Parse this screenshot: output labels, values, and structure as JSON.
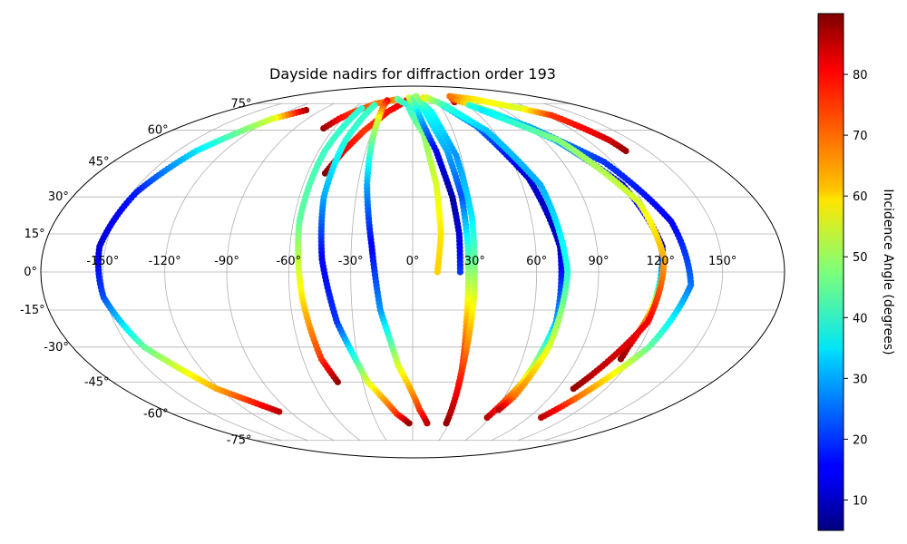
{
  "chart_data": {
    "type": "scatter",
    "projection": "mollweide",
    "title": "Dayside nadirs for diffraction order 193",
    "longitude_ticks": [
      "-150°",
      "-120°",
      "-90°",
      "-60°",
      "-30°",
      "0°",
      "30°",
      "60°",
      "90°",
      "120°",
      "150°"
    ],
    "latitude_ticks": [
      "-75°",
      "-60°",
      "-45°",
      "-30°",
      "-15°",
      "0°",
      "15°",
      "30°",
      "45°",
      "60°",
      "75°"
    ],
    "grid": true,
    "colorbar": {
      "label": "Incidence Angle (degrees)",
      "colormap": "jet",
      "range": [
        5,
        90
      ],
      "ticks": [
        "10",
        "20",
        "30",
        "40",
        "50",
        "60",
        "70",
        "80"
      ]
    },
    "tracks": [
      {
        "points": [
          [
            -105,
            71,
            88
          ],
          [
            -120,
            66,
            55
          ],
          [
            -138,
            50,
            35
          ],
          [
            -148,
            32,
            18
          ],
          [
            -153,
            10,
            12
          ],
          [
            -151,
            -10,
            22
          ],
          [
            -142,
            -30,
            45
          ],
          [
            -122,
            -48,
            65
          ],
          [
            -98,
            -59,
            85
          ]
        ]
      },
      {
        "points": [
          [
            -68,
            61,
            88
          ],
          [
            -63,
            66,
            80
          ],
          [
            -56,
            70,
            75
          ],
          [
            -42,
            75,
            70
          ],
          [
            -20,
            78,
            68
          ]
        ]
      },
      {
        "points": [
          [
            -50,
            40,
            90
          ],
          [
            -44,
            50,
            80
          ],
          [
            -36,
            60,
            75
          ],
          [
            -24,
            70,
            78
          ],
          [
            -8,
            77,
            82
          ]
        ]
      },
      {
        "points": [
          [
            -52,
            72,
            40
          ],
          [
            -56,
            50,
            42
          ],
          [
            -57,
            20,
            45
          ],
          [
            -54,
            -10,
            60
          ],
          [
            -50,
            -35,
            75
          ],
          [
            -45,
            -45,
            88
          ]
        ]
      },
      {
        "points": [
          [
            -42,
            74,
            42
          ],
          [
            -46,
            55,
            40
          ],
          [
            -47,
            30,
            30
          ],
          [
            -44,
            5,
            15
          ],
          [
            -38,
            -20,
            20
          ],
          [
            -27,
            -45,
            55
          ],
          [
            -12,
            -60,
            75
          ],
          [
            -3,
            -65,
            88
          ]
        ]
      },
      {
        "points": [
          [
            -32,
            77,
            80
          ],
          [
            -29,
            65,
            55
          ],
          [
            -25,
            35,
            30
          ],
          [
            -20,
            10,
            15
          ],
          [
            -16,
            -15,
            28
          ],
          [
            -8,
            -38,
            55
          ],
          [
            5,
            -58,
            75
          ],
          [
            12,
            -65,
            85
          ]
        ]
      },
      {
        "points": [
          [
            -20,
            78,
            45
          ],
          [
            -5,
            74,
            40
          ],
          [
            8,
            58,
            48
          ],
          [
            13,
            35,
            55
          ],
          [
            14,
            15,
            60
          ],
          [
            12,
            0,
            62
          ]
        ]
      },
      {
        "points": [
          [
            -5,
            79,
            55
          ],
          [
            5,
            70,
            35
          ],
          [
            15,
            50,
            15
          ],
          [
            21,
            30,
            8
          ],
          [
            23,
            15,
            12
          ],
          [
            23,
            0,
            20
          ]
        ]
      },
      {
        "points": [
          [
            2,
            79,
            45
          ],
          [
            12,
            70,
            38
          ],
          [
            22,
            50,
            30
          ],
          [
            26,
            30,
            22
          ],
          [
            27,
            10,
            40
          ],
          [
            27,
            -20,
            65
          ],
          [
            28,
            -40,
            80
          ],
          [
            28,
            -46,
            88
          ]
        ]
      },
      {
        "points": [
          [
            5,
            80,
            50
          ],
          [
            18,
            70,
            38
          ],
          [
            27,
            48,
            28
          ],
          [
            30,
            22,
            35
          ],
          [
            30,
            -10,
            55
          ],
          [
            28,
            -40,
            75
          ],
          [
            28,
            -65,
            88
          ]
        ]
      },
      {
        "points": [
          [
            15,
            79,
            60
          ],
          [
            30,
            76,
            40
          ],
          [
            50,
            62,
            25
          ],
          [
            65,
            38,
            12
          ],
          [
            72,
            10,
            10
          ],
          [
            72,
            -20,
            30
          ],
          [
            66,
            -45,
            60
          ],
          [
            58,
            -62,
            85
          ]
        ]
      },
      {
        "points": [
          [
            20,
            79,
            55
          ],
          [
            35,
            74,
            42
          ],
          [
            55,
            60,
            32
          ],
          [
            70,
            35,
            30
          ],
          [
            75,
            0,
            40
          ],
          [
            72,
            -30,
            55
          ],
          [
            66,
            -52,
            70
          ],
          [
            62,
            -58,
            85
          ]
        ]
      },
      {
        "points": [
          [
            50,
            76,
            85
          ],
          [
            55,
            80,
            70
          ],
          [
            80,
            78,
            60
          ],
          [
            110,
            72,
            55
          ],
          [
            125,
            68,
            75
          ],
          [
            135,
            55,
            83
          ],
          [
            136,
            50,
            88
          ]
        ]
      },
      {
        "points": [
          [
            54,
            78,
            70
          ],
          [
            75,
            70,
            45
          ],
          [
            98,
            55,
            30
          ],
          [
            115,
            35,
            15
          ],
          [
            122,
            10,
            10
          ],
          [
            118,
            -15,
            60
          ],
          [
            114,
            -30,
            85
          ],
          [
            114,
            -35,
            88
          ]
        ]
      },
      {
        "points": [
          [
            62,
            74,
            40
          ],
          [
            90,
            62,
            30
          ],
          [
            115,
            45,
            20
          ],
          [
            130,
            20,
            15
          ],
          [
            135,
            -5,
            25
          ],
          [
            125,
            -30,
            45
          ],
          [
            108,
            -52,
            70
          ],
          [
            100,
            -62,
            85
          ]
        ]
      },
      {
        "points": [
          [
            68,
            71,
            35
          ],
          [
            100,
            55,
            48
          ],
          [
            118,
            28,
            55
          ],
          [
            122,
            5,
            65
          ],
          [
            118,
            -20,
            80
          ],
          [
            104,
            -42,
            85
          ],
          [
            100,
            -48,
            88
          ]
        ]
      }
    ]
  }
}
